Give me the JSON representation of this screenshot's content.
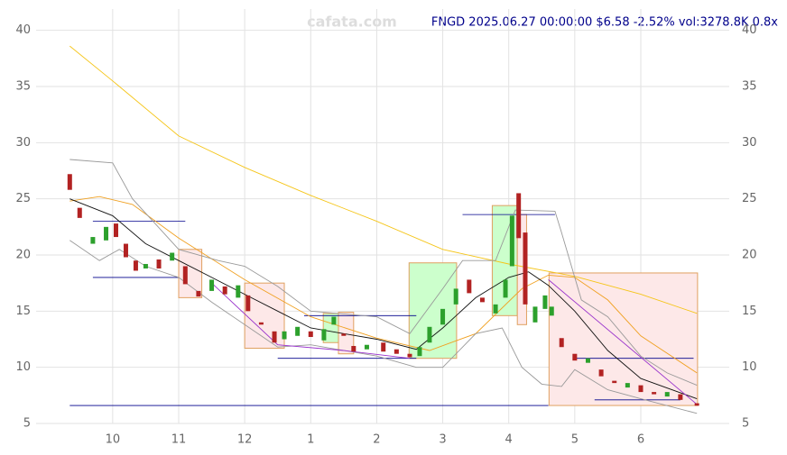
{
  "chart_data": {
    "type": "candlestick",
    "title": "FNGD 2025.06.27 00:00:00 $6.58 -2.52% vol:3278.8K 0.8x",
    "watermark": "cafata.com",
    "xlim": [
      8.84,
      19.34
    ],
    "xticks": [
      10,
      11,
      12,
      {
        "value": 13,
        "label": "1"
      },
      {
        "value": 14,
        "label": "2"
      },
      {
        "value": 15,
        "label": "3"
      },
      {
        "value": 16,
        "label": "4"
      },
      {
        "value": 17,
        "label": "5"
      },
      {
        "value": 18,
        "label": "6"
      }
    ],
    "ylim": [
      5,
      41.9
    ],
    "yticks": [
      5,
      10,
      15,
      20,
      25,
      30,
      35,
      40
    ],
    "grid": true,
    "up_color": "#2ca02c",
    "down_color": "#b22222",
    "candles": {
      "x": [
        9.35,
        9.5,
        9.7,
        9.9,
        10.05,
        10.2,
        10.35,
        10.5,
        10.7,
        10.9,
        11.1,
        11.3,
        11.5,
        11.7,
        11.9,
        12.05,
        12.25,
        12.45,
        12.6,
        12.8,
        13.0,
        13.2,
        13.35,
        13.5,
        13.65,
        13.85,
        14.1,
        14.3,
        14.5,
        14.65,
        14.8,
        15.0,
        15.2,
        15.4,
        15.6,
        15.8,
        15.95,
        16.05,
        16.15,
        16.25,
        16.4,
        16.55,
        16.65,
        16.8,
        17.0,
        17.2,
        17.4,
        17.6,
        17.8,
        18.0,
        18.2,
        18.4,
        18.6,
        18.85
      ],
      "open": [
        27.2,
        24.2,
        21.0,
        21.3,
        22.8,
        21.0,
        19.5,
        18.8,
        19.6,
        19.5,
        19.0,
        16.8,
        16.8,
        17.2,
        16.2,
        16.4,
        14.0,
        13.2,
        12.5,
        12.8,
        13.2,
        12.4,
        13.8,
        13.0,
        11.9,
        11.6,
        12.2,
        11.6,
        11.2,
        11.0,
        12.2,
        13.8,
        15.6,
        17.8,
        16.2,
        14.8,
        16.2,
        19.0,
        25.5,
        22.0,
        14.0,
        15.2,
        14.6,
        12.6,
        11.2,
        10.4,
        9.8,
        8.8,
        8.2,
        8.4,
        7.8,
        7.4,
        7.6,
        6.8
      ],
      "close": [
        25.8,
        23.3,
        21.6,
        22.5,
        21.6,
        19.8,
        18.6,
        19.2,
        18.8,
        20.2,
        17.4,
        16.3,
        17.8,
        16.5,
        17.3,
        15.0,
        13.8,
        12.2,
        13.2,
        13.6,
        12.7,
        13.4,
        14.5,
        12.8,
        11.4,
        12.0,
        11.4,
        11.2,
        10.9,
        11.8,
        13.6,
        15.2,
        17.0,
        16.6,
        15.8,
        15.6,
        17.8,
        23.5,
        21.5,
        15.6,
        15.4,
        16.4,
        15.4,
        11.8,
        10.6,
        10.8,
        9.2,
        8.6,
        8.6,
        7.8,
        7.6,
        7.8,
        7.1,
        6.58
      ]
    },
    "lines": [
      {
        "color": "#f5c518",
        "x": [
          9.35,
          10,
          11,
          12,
          13,
          14,
          15,
          16,
          17,
          18,
          18.85
        ],
        "y": [
          38.6,
          35.5,
          30.6,
          27.8,
          25.3,
          23.0,
          20.5,
          19.2,
          18.1,
          16.5,
          14.8
        ]
      },
      {
        "color": "#f0a020",
        "x": [
          9.35,
          9.8,
          10.3,
          11,
          12,
          13,
          14,
          14.8,
          15.5,
          16.2,
          16.6,
          17,
          17.5,
          18,
          18.85
        ],
        "y": [
          24.8,
          25.2,
          24.5,
          21.5,
          17.8,
          14.5,
          12.6,
          11.5,
          13.0,
          17.0,
          18.2,
          18.0,
          16.0,
          12.8,
          9.5
        ]
      },
      {
        "color": "#111111",
        "x": [
          9.35,
          10,
          10.5,
          11,
          11.5,
          12,
          12.5,
          13,
          13.5,
          14,
          14.6,
          15,
          15.5,
          16,
          16.3,
          16.6,
          17,
          17.5,
          18,
          18.85
        ],
        "y": [
          25,
          23.5,
          21,
          19.5,
          18,
          16.5,
          15,
          13.5,
          13,
          12.5,
          11.6,
          13.5,
          16.2,
          18.0,
          18.5,
          17.3,
          15.0,
          11.5,
          9.0,
          7.2
        ]
      },
      {
        "color": "#999999",
        "x": [
          9.35,
          10,
          10.3,
          11,
          11.6,
          12,
          12.5,
          13,
          14,
          14.5,
          15,
          15.3,
          15.8,
          16.1,
          16.7,
          16.8,
          17.1,
          17.5,
          18,
          18.4,
          18.85
        ],
        "y": [
          28.5,
          28.2,
          25,
          20.5,
          19.5,
          19.0,
          17.2,
          15.0,
          14.5,
          13.0,
          17,
          19.5,
          19.5,
          24,
          23.9,
          22,
          16,
          14.5,
          11,
          9.5,
          8.4
        ]
      },
      {
        "color": "#999999",
        "x": [
          9.35,
          9.8,
          10.1,
          10.5,
          11,
          11.5,
          12,
          12.5,
          13,
          14,
          14.6,
          15,
          15.5,
          15.9,
          16.2,
          16.5,
          16.8,
          17,
          17.5,
          18,
          18.85
        ],
        "y": [
          21.3,
          19.5,
          20.5,
          19.0,
          18.0,
          15.8,
          13.8,
          11.8,
          12.0,
          11.0,
          10.0,
          10.0,
          13.0,
          13.5,
          10.0,
          8.5,
          8.3,
          9.8,
          8.0,
          7.2,
          5.9
        ]
      },
      {
        "color": "#9932cc",
        "x": [
          11.5,
          12.5,
          13.5,
          14.5
        ],
        "y": [
          17.5,
          12.0,
          11.5,
          10.8
        ]
      },
      {
        "color": "#9932cc",
        "x": [
          16.6,
          18.85
        ],
        "y": [
          17.8,
          6.7
        ]
      }
    ],
    "levels": [
      {
        "color": "#00008b",
        "x": [
          9.7,
          11.1
        ],
        "y": 23
      },
      {
        "color": "#00008b",
        "x": [
          9.7,
          11.0
        ],
        "y": 18
      },
      {
        "color": "#00008b",
        "x": [
          12.5,
          14.6
        ],
        "y": 10.8
      },
      {
        "color": "#00008b",
        "x": [
          12.9,
          14.6
        ],
        "y": 14.6
      },
      {
        "color": "#00008b",
        "x": [
          9.35,
          16.6
        ],
        "y": 6.6
      },
      {
        "color": "#00008b",
        "x": [
          15.3,
          16.7
        ],
        "y": 23.6
      },
      {
        "color": "#00008b",
        "x": [
          17.0,
          18.8
        ],
        "y": 10.8
      },
      {
        "color": "#00008b",
        "x": [
          17.3,
          18.6
        ],
        "y": 7.1
      }
    ],
    "zones": [
      {
        "color": "#fde8e8",
        "x": [
          11.0,
          11.35
        ],
        "y": [
          16.2,
          20.5
        ]
      },
      {
        "color": "#fde8e8",
        "x": [
          12.0,
          12.6
        ],
        "y": [
          11.7,
          17.5
        ]
      },
      {
        "color": "#ccffcc",
        "x": [
          13.19,
          13.42
        ],
        "y": [
          12.2,
          14.8
        ]
      },
      {
        "color": "#fde8e8",
        "x": [
          13.42,
          13.65
        ],
        "y": [
          11.2,
          14.9
        ]
      },
      {
        "color": "#ccffcc",
        "x": [
          14.49,
          15.21
        ],
        "y": [
          10.8,
          19.3
        ]
      },
      {
        "color": "#ccffcc",
        "x": [
          15.75,
          16.13
        ],
        "y": [
          14.6,
          24.4
        ]
      },
      {
        "color": "#fde8e8",
        "x": [
          16.13,
          16.27
        ],
        "y": [
          13.8,
          23.6
        ]
      },
      {
        "color": "#fde8e8",
        "x": [
          16.61,
          18.86
        ],
        "y": [
          6.6,
          18.4
        ]
      }
    ]
  }
}
